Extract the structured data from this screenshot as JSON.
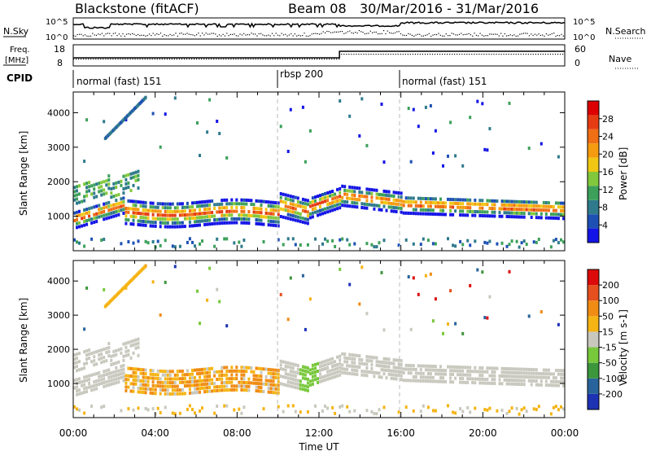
{
  "header": {
    "station": "Blackstone (fitACF)",
    "beam": "Beam 08",
    "date_range": "30/Mar/2016 - 31/Mar/2016"
  },
  "nsky_panel": {
    "left_label": "N.Sky",
    "right_label": "N.Search",
    "left_ticks": [
      "10^5",
      "10^0"
    ],
    "right_ticks": [
      "10^5",
      "10^0"
    ]
  },
  "freq_panel": {
    "left_label_1": "Freq.",
    "left_label_2": "[MHz]",
    "right_label": "Nave",
    "left_ticks": [
      "18",
      "8"
    ],
    "right_ticks": [
      "60",
      "0"
    ],
    "nave_step_hour": 13.0
  },
  "cpid_panel": {
    "label": "CPID",
    "segments": [
      {
        "start_hour": 0.0,
        "text": "normal (fast) 151"
      },
      {
        "start_hour": 10.0,
        "text": "rbsp 200"
      },
      {
        "start_hour": 16.0,
        "text": "normal (fast) 151"
      }
    ]
  },
  "chart_data": [
    {
      "type": "heatmap",
      "name": "power",
      "ylabel": "Slant Range [km]",
      "y_ticks": [
        "1000",
        "2000",
        "3000",
        "4000"
      ],
      "ylim": [
        0,
        4600
      ],
      "colorbar_label": "Power [dB]",
      "colorbar_ticks": [
        "4",
        "8",
        "12",
        "16",
        "20",
        "24",
        "28"
      ],
      "colorbar_colors": [
        "#1414e6",
        "#1e50b4",
        "#2f7a8c",
        "#3ca05a",
        "#82c83c",
        "#f0c814",
        "#f59b0f",
        "#f06e14",
        "#e63c14",
        "#dc0000"
      ]
    },
    {
      "type": "heatmap",
      "name": "velocity",
      "ylabel": "Slant Range [km]",
      "y_ticks": [
        "1000",
        "2000",
        "3000",
        "4000"
      ],
      "ylim": [
        0,
        4600
      ],
      "colorbar_label": "Velocity [m s-1]",
      "colorbar_ticks": [
        "200",
        "100",
        "50",
        "15",
        "-15",
        "-50",
        "-100",
        "-200"
      ],
      "colorbar_colors": [
        "#1e32b4",
        "#28649b",
        "#3c963c",
        "#78c83c",
        "#c8c8be",
        "#f5b414",
        "#f08c14",
        "#e6501e",
        "#dc0a0a"
      ]
    }
  ],
  "x_axis": {
    "label": "Time UT",
    "ticks": [
      "00:00",
      "04:00",
      "08:00",
      "12:00",
      "16:00",
      "20:00",
      "00:00"
    ],
    "range_hours": [
      0,
      24
    ]
  }
}
